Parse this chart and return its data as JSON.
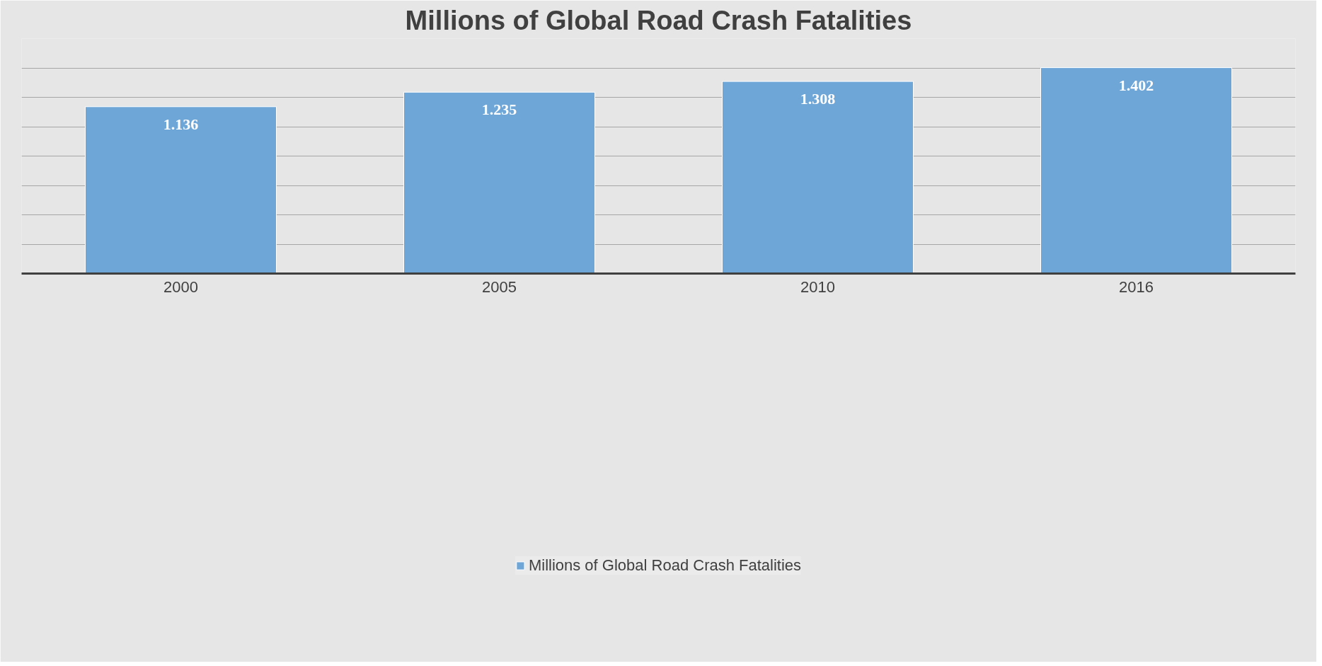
{
  "chart_data": {
    "type": "bar",
    "title": "Millions of Global Road Crash Fatalities",
    "categories": [
      "2000",
      "2005",
      "2010",
      "2016"
    ],
    "series": [
      {
        "name": "Millions of Global Road Crash Fatalities",
        "color": "#6fa6d8",
        "values": [
          1.136,
          1.235,
          1.308,
          1.402
        ]
      }
    ],
    "ylim": [
      0,
      1.6
    ],
    "yticks": [
      {
        "value": 0,
        "label": null
      },
      {
        "value": 0.2,
        "label": null
      },
      {
        "value": 0.4,
        "label": null
      },
      {
        "value": 0.6,
        "label": null
      },
      {
        "value": 0.8,
        "label": null
      },
      {
        "value": 1.0,
        "label": null
      },
      {
        "value": 1.2,
        "label": null
      },
      {
        "value": 1.4,
        "label": null
      },
      {
        "value": 1.6,
        "label": null
      }
    ],
    "tick_labels": "x",
    "grid": "y",
    "data_labels": true,
    "legend": "bottom"
  }
}
